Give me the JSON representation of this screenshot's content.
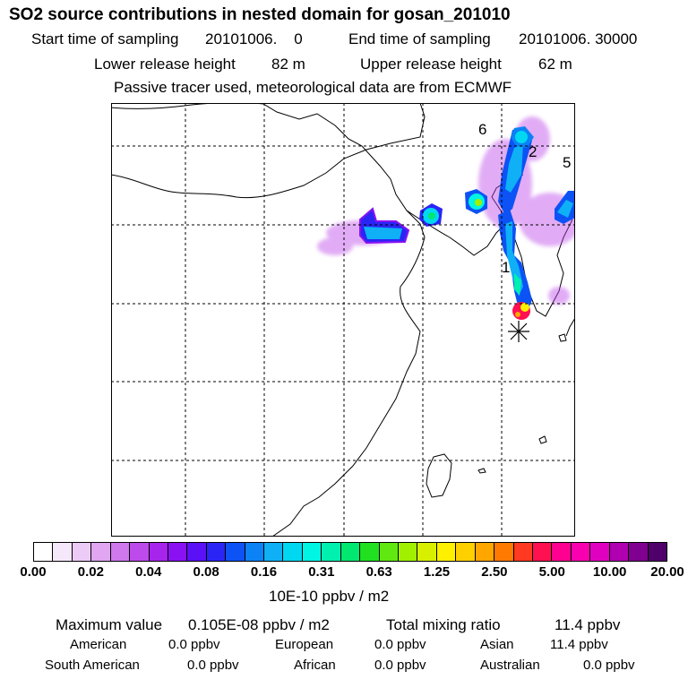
{
  "header": {
    "title": "SO2 source contributions in nested domain for gosan_201010",
    "start_label": "Start time of sampling",
    "start_value": "20101006.    0",
    "end_label": "End time of sampling",
    "end_value": "20101006. 30000",
    "lower_label": "Lower release height",
    "lower_value": "82 m",
    "upper_label": "Upper release height",
    "upper_value": "62 m",
    "note": "Passive tracer used, meteorological data are from ECMWF"
  },
  "map": {
    "region_labels": [
      "1",
      "2",
      "5",
      "6"
    ],
    "receptor_symbol": "✳"
  },
  "colorbar": {
    "colors": [
      "#ffffff",
      "#f6e8fb",
      "#eccbf7",
      "#e0a6f2",
      "#cf78ee",
      "#bd4aea",
      "#a724ec",
      "#8a12f2",
      "#5b10f5",
      "#2a25f5",
      "#0c52f5",
      "#0b82f5",
      "#0fb0f5",
      "#00d8f2",
      "#00f5e3",
      "#00f0b0",
      "#00e870",
      "#20e020",
      "#60e810",
      "#a0f000",
      "#d8f000",
      "#fff000",
      "#ffd000",
      "#ffa600",
      "#ff7a00",
      "#ff3a20",
      "#ff1050",
      "#ff0090",
      "#f800b0",
      "#e000c0",
      "#b000b0",
      "#800090",
      "#50006a"
    ],
    "tick_labels": [
      "0.00",
      "0.02",
      "0.04",
      "0.08",
      "0.16",
      "0.31",
      "0.63",
      "1.25",
      "2.50",
      "5.00",
      "10.00",
      "20.00"
    ],
    "unit": "10E-10 ppbv / m2"
  },
  "summary": {
    "max_label": "Maximum value",
    "max_value": "0.105E-08 ppbv / m2",
    "total_label": "Total mixing ratio",
    "total_value": "11.4 ppbv",
    "american_label": "American",
    "american_value": "0.0 ppbv",
    "european_label": "European",
    "european_value": "0.0 ppbv",
    "asian_label": "Asian",
    "asian_value": "11.4 ppbv",
    "south_american_label": "South American",
    "south_american_value": "0.0 ppbv",
    "african_label": "African",
    "african_value": "0.0 ppbv",
    "australian_label": "Australian",
    "australian_value": "0.0 ppbv"
  }
}
